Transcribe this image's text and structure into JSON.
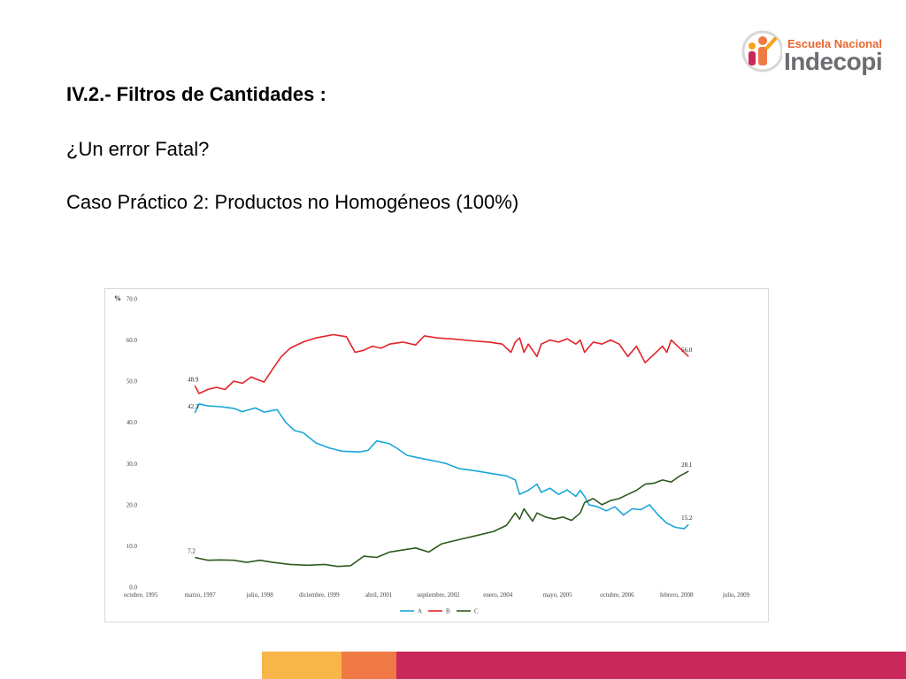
{
  "header": {
    "title": "IV.2.- Filtros de Cantidades :",
    "subtitle": "¿Un error Fatal?",
    "case_label": "Caso Práctico 2: Productos no Homogéneos (100%)"
  },
  "logo": {
    "top_text": "Escuela Nacional",
    "main_text": "Indecopi"
  },
  "colors": {
    "A": "#1aa6d8",
    "B": "#e32226",
    "C": "#2f5a1e",
    "band_yellow": "#f7b54a",
    "band_orange": "#ef7a45",
    "band_crimson": "#c8285a"
  },
  "chart_data": {
    "type": "line",
    "ylabel": "%",
    "ylim": [
      0,
      70
    ],
    "yticks": [
      "0.0",
      "10.0",
      "20.0",
      "30.0",
      "40.0",
      "50.0",
      "60.0",
      "70.0"
    ],
    "x_tick_labels": [
      "octubre, 1995",
      "marzo, 1997",
      "julio, 1998",
      "diciembre, 1999",
      "abril, 2001",
      "septiembre, 2002",
      "enero, 2004",
      "mayo, 2005",
      "octubre, 2006",
      "febrero, 2008",
      "julio, 2009"
    ],
    "grid": false,
    "legend_position": "bottom",
    "series": [
      {
        "name": "A",
        "points": [
          [
            1997.0,
            42.3
          ],
          [
            1997.1,
            44.5
          ],
          [
            1997.3,
            44.0
          ],
          [
            1997.6,
            43.8
          ],
          [
            1997.9,
            43.4
          ],
          [
            1998.1,
            42.6
          ],
          [
            1998.4,
            43.5
          ],
          [
            1998.6,
            42.5
          ],
          [
            1998.9,
            43.1
          ],
          [
            1999.1,
            40.0
          ],
          [
            1999.3,
            38.0
          ],
          [
            1999.5,
            37.5
          ],
          [
            1999.8,
            35.0
          ],
          [
            2000.1,
            33.8
          ],
          [
            2000.4,
            33.0
          ],
          [
            2000.8,
            32.8
          ],
          [
            2001.0,
            33.2
          ],
          [
            2001.2,
            35.5
          ],
          [
            2001.5,
            34.8
          ],
          [
            2001.7,
            33.5
          ],
          [
            2001.9,
            32.0
          ],
          [
            2002.2,
            31.3
          ],
          [
            2002.6,
            30.5
          ],
          [
            2002.8,
            30.0
          ],
          [
            2003.1,
            28.8
          ],
          [
            2003.5,
            28.2
          ],
          [
            2003.9,
            27.5
          ],
          [
            2004.2,
            27.0
          ],
          [
            2004.4,
            26.0
          ],
          [
            2004.5,
            22.5
          ],
          [
            2004.7,
            23.5
          ],
          [
            2004.9,
            25.0
          ],
          [
            2005.0,
            23.0
          ],
          [
            2005.2,
            24.0
          ],
          [
            2005.4,
            22.5
          ],
          [
            2005.6,
            23.6
          ],
          [
            2005.8,
            22.0
          ],
          [
            2005.9,
            23.5
          ],
          [
            2006.0,
            22.0
          ],
          [
            2006.1,
            20.0
          ],
          [
            2006.3,
            19.5
          ],
          [
            2006.5,
            18.5
          ],
          [
            2006.7,
            19.5
          ],
          [
            2006.9,
            17.5
          ],
          [
            2007.1,
            19.0
          ],
          [
            2007.3,
            18.8
          ],
          [
            2007.5,
            20.0
          ],
          [
            2007.7,
            17.5
          ],
          [
            2007.9,
            15.5
          ],
          [
            2008.1,
            14.5
          ],
          [
            2008.3,
            14.2
          ],
          [
            2008.4,
            15.2
          ]
        ]
      },
      {
        "name": "B",
        "points": [
          [
            1997.0,
            48.9
          ],
          [
            1997.1,
            47.0
          ],
          [
            1997.3,
            48.0
          ],
          [
            1997.5,
            48.5
          ],
          [
            1997.7,
            48.0
          ],
          [
            1997.9,
            50.0
          ],
          [
            1998.1,
            49.5
          ],
          [
            1998.3,
            51.0
          ],
          [
            1998.6,
            49.8
          ],
          [
            1998.8,
            53.0
          ],
          [
            1999.0,
            56.0
          ],
          [
            1999.2,
            58.0
          ],
          [
            1999.5,
            59.5
          ],
          [
            1999.8,
            60.5
          ],
          [
            2000.2,
            61.3
          ],
          [
            2000.5,
            60.8
          ],
          [
            2000.7,
            57.0
          ],
          [
            2000.9,
            57.5
          ],
          [
            2001.1,
            58.5
          ],
          [
            2001.3,
            58.0
          ],
          [
            2001.5,
            59.0
          ],
          [
            2001.8,
            59.5
          ],
          [
            2002.1,
            58.8
          ],
          [
            2002.3,
            61.0
          ],
          [
            2002.6,
            60.5
          ],
          [
            2003.0,
            60.2
          ],
          [
            2003.4,
            59.8
          ],
          [
            2003.8,
            59.5
          ],
          [
            2004.1,
            59.0
          ],
          [
            2004.3,
            57.0
          ],
          [
            2004.4,
            59.5
          ],
          [
            2004.5,
            60.5
          ],
          [
            2004.6,
            57.0
          ],
          [
            2004.7,
            59.0
          ],
          [
            2004.9,
            56.0
          ],
          [
            2005.0,
            59.0
          ],
          [
            2005.2,
            60.0
          ],
          [
            2005.4,
            59.5
          ],
          [
            2005.6,
            60.3
          ],
          [
            2005.8,
            59.0
          ],
          [
            2005.9,
            60.0
          ],
          [
            2006.0,
            57.0
          ],
          [
            2006.2,
            59.5
          ],
          [
            2006.4,
            59.0
          ],
          [
            2006.6,
            60.0
          ],
          [
            2006.8,
            59.0
          ],
          [
            2007.0,
            56.0
          ],
          [
            2007.2,
            58.5
          ],
          [
            2007.4,
            54.5
          ],
          [
            2007.6,
            56.5
          ],
          [
            2007.8,
            58.5
          ],
          [
            2007.9,
            57.0
          ],
          [
            2008.0,
            60.0
          ],
          [
            2008.2,
            58.0
          ],
          [
            2008.4,
            56.0
          ]
        ]
      },
      {
        "name": "C",
        "points": [
          [
            1997.0,
            7.2
          ],
          [
            1997.3,
            6.5
          ],
          [
            1997.6,
            6.6
          ],
          [
            1997.9,
            6.5
          ],
          [
            1998.2,
            6.0
          ],
          [
            1998.5,
            6.5
          ],
          [
            1998.8,
            6.0
          ],
          [
            1999.2,
            5.5
          ],
          [
            1999.6,
            5.3
          ],
          [
            2000.0,
            5.5
          ],
          [
            2000.3,
            5.0
          ],
          [
            2000.6,
            5.2
          ],
          [
            2000.9,
            7.5
          ],
          [
            2001.2,
            7.2
          ],
          [
            2001.5,
            8.5
          ],
          [
            2001.8,
            9.0
          ],
          [
            2002.1,
            9.5
          ],
          [
            2002.4,
            8.5
          ],
          [
            2002.7,
            10.5
          ],
          [
            2003.1,
            11.5
          ],
          [
            2003.5,
            12.5
          ],
          [
            2003.9,
            13.5
          ],
          [
            2004.2,
            15.0
          ],
          [
            2004.4,
            18.0
          ],
          [
            2004.5,
            16.5
          ],
          [
            2004.6,
            19.0
          ],
          [
            2004.8,
            16.0
          ],
          [
            2004.9,
            18.0
          ],
          [
            2005.1,
            17.0
          ],
          [
            2005.3,
            16.5
          ],
          [
            2005.5,
            17.0
          ],
          [
            2005.7,
            16.2
          ],
          [
            2005.9,
            18.0
          ],
          [
            2006.0,
            20.5
          ],
          [
            2006.2,
            21.5
          ],
          [
            2006.4,
            20.0
          ],
          [
            2006.6,
            21.0
          ],
          [
            2006.8,
            21.5
          ],
          [
            2007.0,
            22.5
          ],
          [
            2007.2,
            23.5
          ],
          [
            2007.4,
            25.0
          ],
          [
            2007.6,
            25.2
          ],
          [
            2007.8,
            26.0
          ],
          [
            2008.0,
            25.5
          ],
          [
            2008.2,
            27.0
          ],
          [
            2008.4,
            28.1
          ]
        ]
      }
    ],
    "labels": [
      {
        "series": "B",
        "text": "48.9",
        "at": "start"
      },
      {
        "series": "A",
        "text": "42.3",
        "at": "start"
      },
      {
        "series": "C",
        "text": "7.2",
        "at": "start"
      },
      {
        "series": "B",
        "text": "56.0",
        "at": "end"
      },
      {
        "series": "C",
        "text": "28.1",
        "at": "end"
      },
      {
        "series": "A",
        "text": "15.2",
        "at": "end"
      }
    ]
  }
}
